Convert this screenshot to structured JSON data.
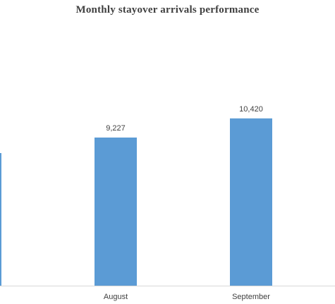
{
  "chart_data": {
    "type": "bar",
    "title": "Monthly stayover arrivals performance",
    "categories": [
      "",
      "August",
      "September"
    ],
    "values": [
      null,
      9227,
      10420
    ],
    "data_labels": [
      "",
      "9,227",
      "10,420"
    ],
    "xlabel": "",
    "ylabel": "",
    "grid": false,
    "legend": "none",
    "bar_color": "#5B9BD5",
    "axis_color": "#D9D9D9"
  }
}
